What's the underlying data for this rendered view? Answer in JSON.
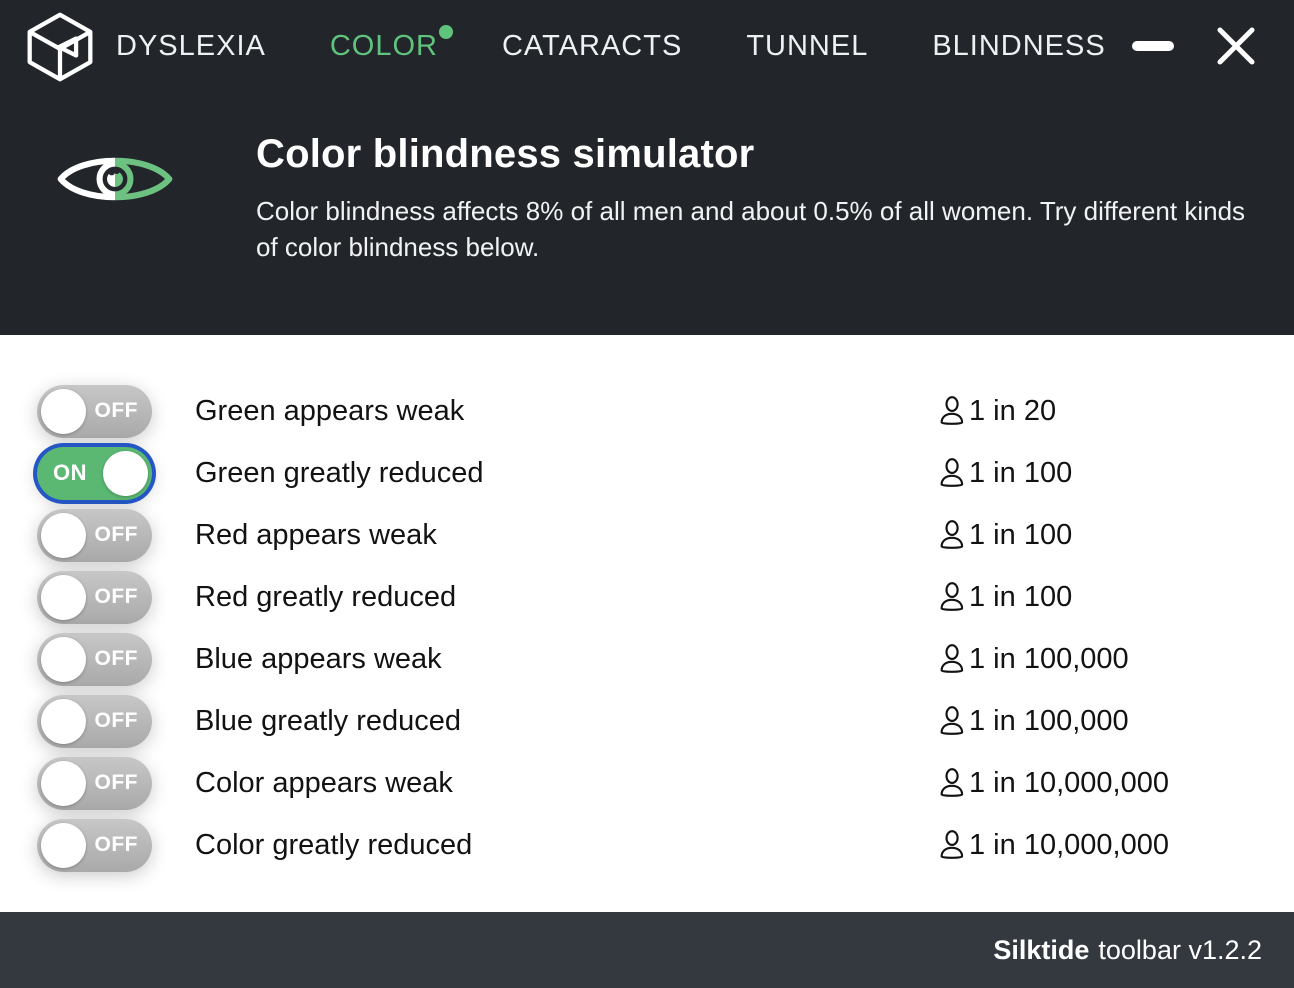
{
  "colors": {
    "header_bg": "#22262b",
    "footer_bg": "#343940",
    "tab_accent_green": "#5fc37d",
    "toggle_on_green": "#5bb873",
    "eye_icon_green": "#6dc282",
    "focus_ring_blue": "#2457c5",
    "toggle_off_gray": "#b3b3b3",
    "content_bg": "#ffffff",
    "text_dark": "#121212"
  },
  "nav": {
    "tabs": [
      {
        "label": "DYSLEXIA",
        "active": false,
        "dot": false
      },
      {
        "label": "COLOR",
        "active": true,
        "dot": true
      },
      {
        "label": "CATARACTS",
        "active": false,
        "dot": false
      },
      {
        "label": "TUNNEL",
        "active": false,
        "dot": false
      },
      {
        "label": "BLINDNESS",
        "active": false,
        "dot": false
      }
    ]
  },
  "header": {
    "title": "Color blindness simulator",
    "description": "Color blindness affects 8% of all men and about 0.5% of all women. Try different kinds of color blindness below."
  },
  "rows": [
    {
      "label": "Green appears weak",
      "state": "OFF",
      "stat": "1 in 20"
    },
    {
      "label": "Green greatly reduced",
      "state": "ON",
      "stat": "1 in 100"
    },
    {
      "label": "Red appears weak",
      "state": "OFF",
      "stat": "1 in 100"
    },
    {
      "label": "Red greatly reduced",
      "state": "OFF",
      "stat": "1 in 100"
    },
    {
      "label": "Blue appears weak",
      "state": "OFF",
      "stat": "1 in 100,000"
    },
    {
      "label": "Blue greatly reduced",
      "state": "OFF",
      "stat": "1 in 100,000"
    },
    {
      "label": "Color appears weak",
      "state": "OFF",
      "stat": "1 in 10,000,000"
    },
    {
      "label": "Color greatly reduced",
      "state": "OFF",
      "stat": "1 in 10,000,000"
    }
  ],
  "footer": {
    "brand": "Silktide",
    "version": "toolbar v1.2.2"
  }
}
